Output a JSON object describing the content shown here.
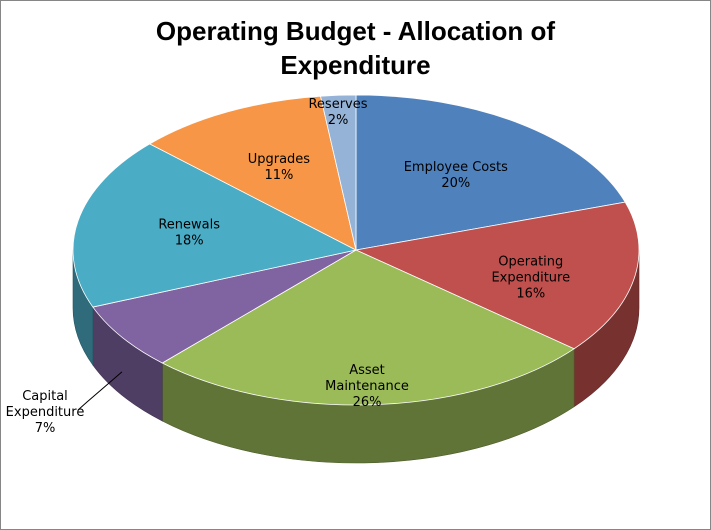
{
  "chart_data": {
    "type": "pie",
    "title_line1": "Operating Budget - Allocation of",
    "title_line2": "Expenditure",
    "slices": [
      {
        "name": "Employee Costs",
        "value": 20,
        "label": "20%",
        "color": "#4F81BD"
      },
      {
        "name": "Operating Expenditure",
        "value": 16,
        "label": "16%",
        "color": "#C0504D"
      },
      {
        "name": "Asset Maintenance",
        "value": 26,
        "label": "26%",
        "color": "#9BBB59"
      },
      {
        "name": "Capital Expenditure",
        "value": 7,
        "label": "7%",
        "color": "#8064A2"
      },
      {
        "name": "Renewals",
        "value": 18,
        "label": "18%",
        "color": "#4BACC6"
      },
      {
        "name": "Upgrades",
        "value": 11,
        "label": "11%",
        "color": "#F79646"
      },
      {
        "name": "Reserves",
        "value": 2,
        "label": "2%",
        "color": "#95B3D7"
      }
    ],
    "legend": "none",
    "style": "3d-pie"
  }
}
